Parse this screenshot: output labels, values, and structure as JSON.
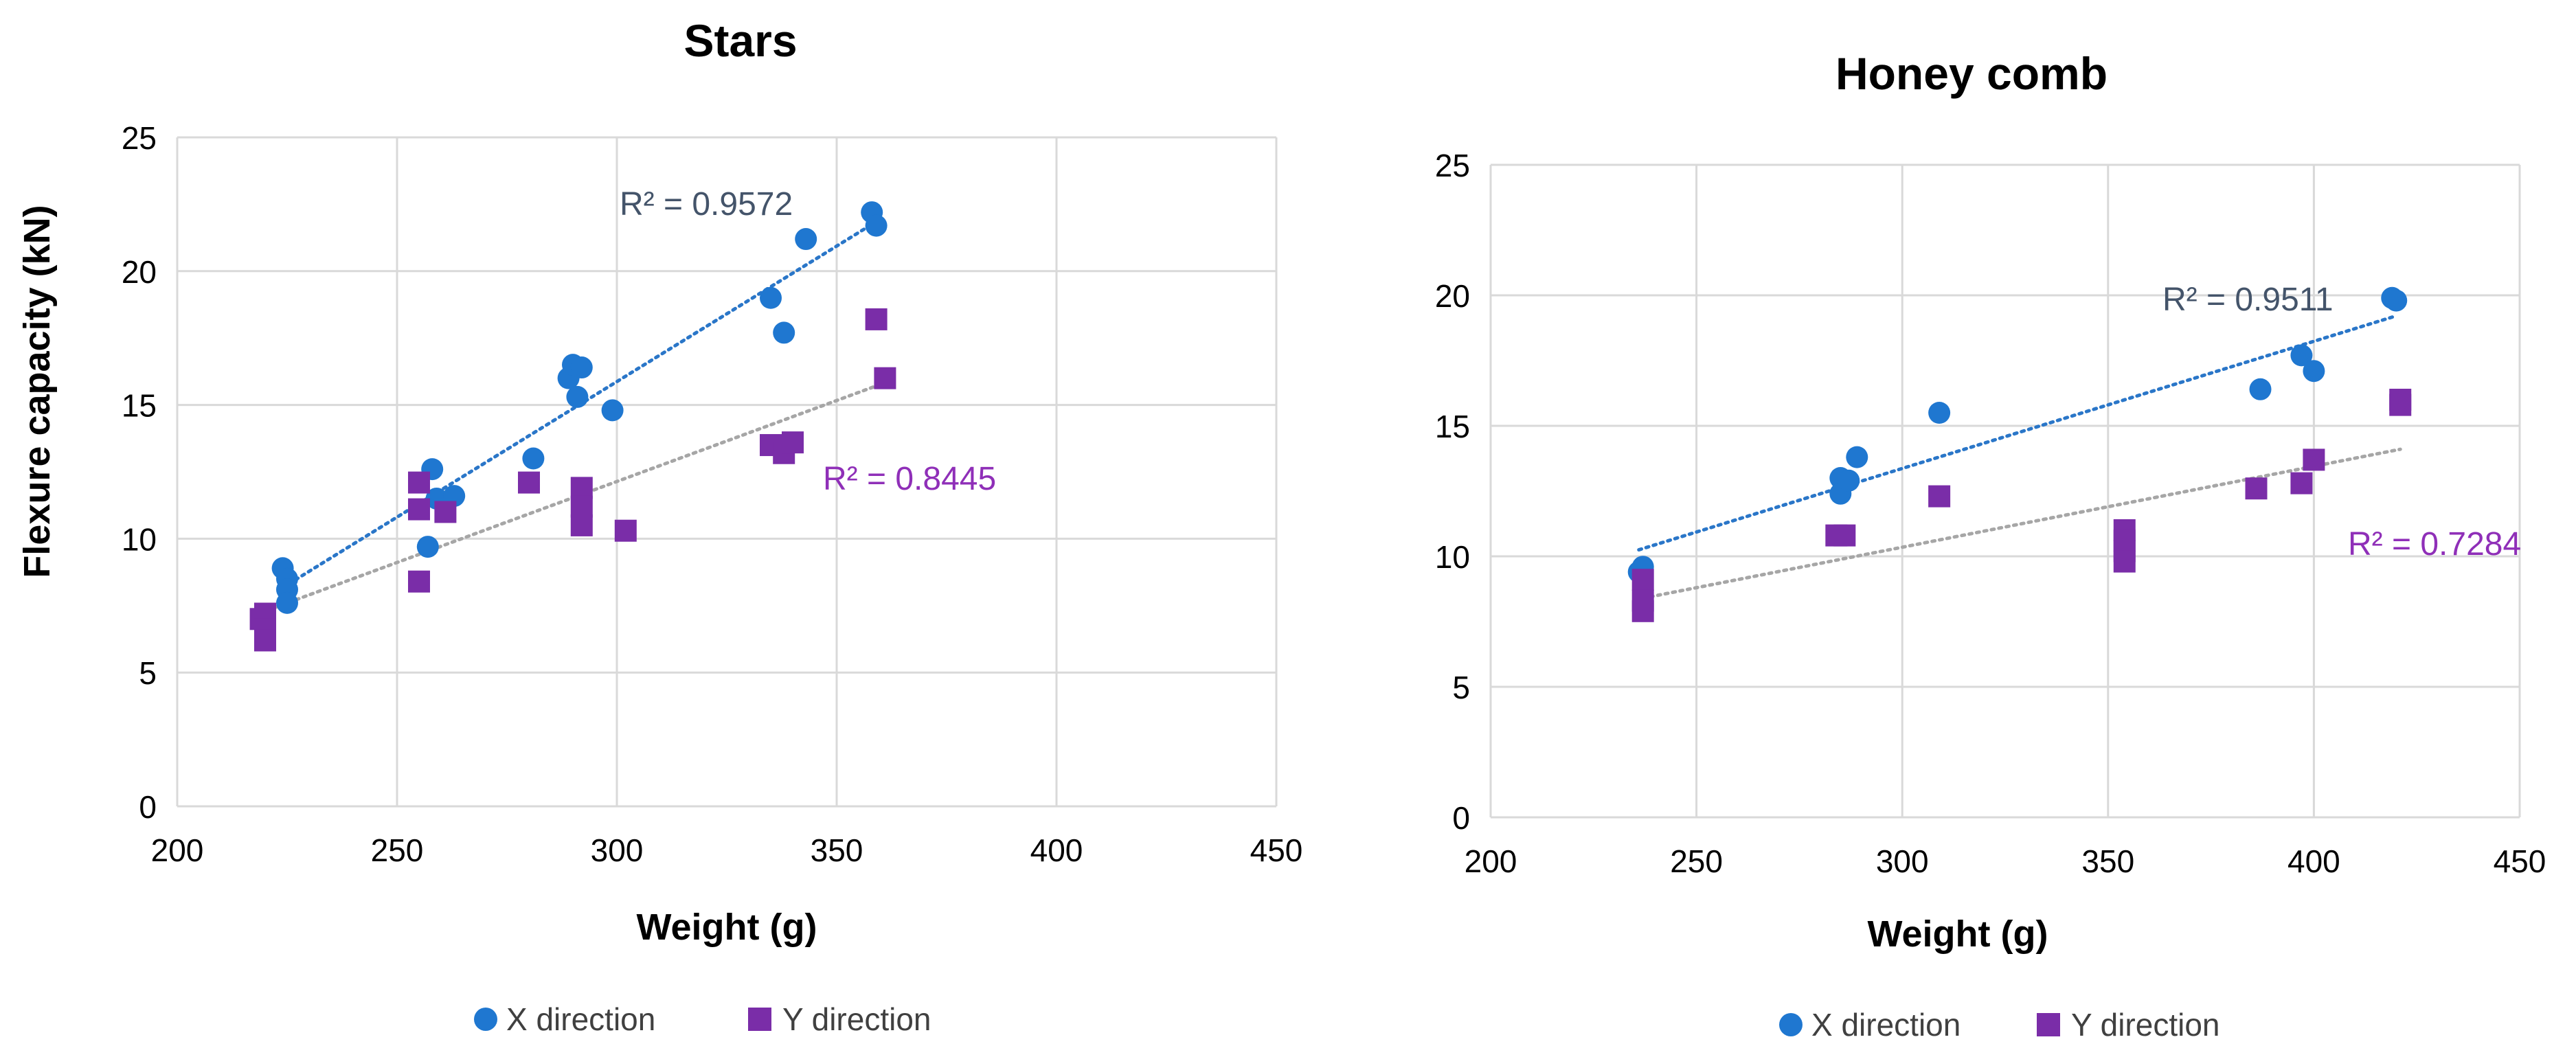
{
  "colors": {
    "x_series": "#1f77d0",
    "y_series": "#7a2da8",
    "x_trend": "#2a76c8",
    "y_trend": "#a6a6a6",
    "x_r2_text": "#44546a",
    "y_r2_text": "#8f2fb8",
    "grid": "#d9d9d9"
  },
  "chart_data": [
    {
      "type": "scatter",
      "title": "Stars",
      "xlabel": "Weight (g)",
      "ylabel": "Flexure capacity (kN)",
      "xlim": [
        200,
        450
      ],
      "ylim": [
        0,
        25
      ],
      "xticks": [
        200,
        250,
        300,
        350,
        400,
        450
      ],
      "yticks": [
        0,
        5,
        10,
        15,
        20,
        25
      ],
      "grid": true,
      "legend": "bottom",
      "series": [
        {
          "name": "X direction",
          "marker": "circle",
          "points": [
            [
              224,
              8.9
            ],
            [
              225,
              8.5
            ],
            [
              225,
              8.1
            ],
            [
              225,
              7.6
            ],
            [
              257,
              9.7
            ],
            [
              258,
              12.6
            ],
            [
              259,
              11.5
            ],
            [
              263,
              11.6
            ],
            [
              281,
              13.0
            ],
            [
              289,
              16.0
            ],
            [
              290,
              16.5
            ],
            [
              291,
              15.3
            ],
            [
              292,
              16.4
            ],
            [
              299,
              14.8
            ],
            [
              335,
              19.0
            ],
            [
              338,
              17.7
            ],
            [
              343,
              21.2
            ],
            [
              358,
              22.2
            ],
            [
              359,
              21.7
            ]
          ],
          "trendline": {
            "x_range": [
              224,
              359
            ],
            "r2": "R² = 0.9572"
          }
        },
        {
          "name": "Y direction",
          "marker": "square",
          "points": [
            [
              219,
              7.0
            ],
            [
              220,
              7.2
            ],
            [
              220,
              6.6
            ],
            [
              220,
              6.2
            ],
            [
              255,
              12.1
            ],
            [
              255,
              11.1
            ],
            [
              255,
              8.4
            ],
            [
              261,
              11.0
            ],
            [
              280,
              12.1
            ],
            [
              292,
              11.9
            ],
            [
              292,
              11.2
            ],
            [
              292,
              10.5
            ],
            [
              302,
              10.3
            ],
            [
              335,
              13.5
            ],
            [
              338,
              13.2
            ],
            [
              340,
              13.6
            ],
            [
              359,
              18.2
            ],
            [
              361,
              16.0
            ]
          ],
          "trendline": {
            "x_range": [
              219,
              361
            ],
            "r2": "R² = 0.8445"
          }
        }
      ]
    },
    {
      "type": "scatter",
      "title": "Honey comb",
      "xlabel": "Weight (g)",
      "ylabel": "",
      "xlim": [
        200,
        450
      ],
      "ylim": [
        0,
        25
      ],
      "xticks": [
        200,
        250,
        300,
        350,
        400,
        450
      ],
      "yticks": [
        0,
        5,
        10,
        15,
        20,
        25
      ],
      "grid": true,
      "legend": "bottom",
      "series": [
        {
          "name": "X direction",
          "marker": "circle",
          "points": [
            [
              236,
              9.4
            ],
            [
              237,
              9.6
            ],
            [
              285,
              13.0
            ],
            [
              285,
              12.4
            ],
            [
              287,
              12.9
            ],
            [
              289,
              13.8
            ],
            [
              309,
              15.5
            ],
            [
              387,
              16.4
            ],
            [
              397,
              17.7
            ],
            [
              400,
              17.1
            ],
            [
              419,
              19.9
            ],
            [
              420,
              19.8
            ]
          ],
          "trendline": {
            "x_range": [
              236,
              420
            ],
            "r2": "R² = 0.9511"
          }
        },
        {
          "name": "Y direction",
          "marker": "square",
          "points": [
            [
              237,
              9.1
            ],
            [
              237,
              8.3
            ],
            [
              237,
              7.9
            ],
            [
              284,
              10.8
            ],
            [
              286,
              10.8
            ],
            [
              309,
              12.3
            ],
            [
              354,
              11.0
            ],
            [
              354,
              10.6
            ],
            [
              354,
              10.2
            ],
            [
              354,
              9.8
            ],
            [
              386,
              12.6
            ],
            [
              397,
              12.8
            ],
            [
              400,
              13.7
            ],
            [
              421,
              16.0
            ],
            [
              421,
              15.8
            ]
          ],
          "trendline": {
            "x_range": [
              237,
              421
            ],
            "r2": "R² = 0.7284"
          }
        }
      ]
    }
  ]
}
